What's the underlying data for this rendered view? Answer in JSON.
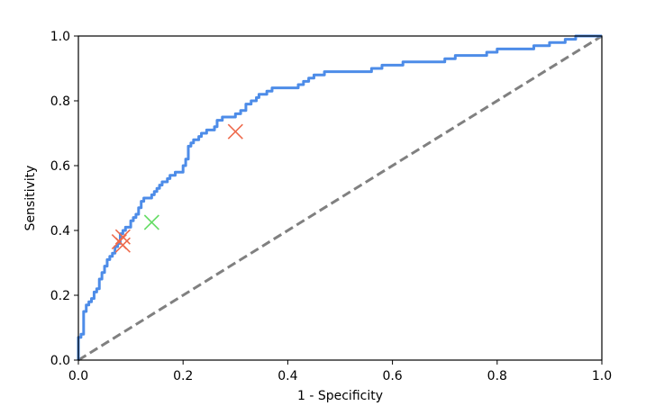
{
  "chart_data": {
    "type": "line",
    "title": "",
    "xlabel": "1 - Specificity",
    "ylabel": "Sensitivity",
    "xlim": [
      0.0,
      1.0
    ],
    "ylim": [
      0.0,
      1.0
    ],
    "xticks": [
      "0.0",
      "0.2",
      "0.4",
      "0.6",
      "0.8",
      "1.0"
    ],
    "yticks": [
      "0.0",
      "0.2",
      "0.4",
      "0.6",
      "0.8",
      "1.0"
    ],
    "grid": false,
    "legend": "none",
    "colors": {
      "roc": "#4d8ce8",
      "reference": "#808080",
      "marker_red": "#ee6b4d",
      "marker_green": "#66dd66"
    },
    "series": [
      {
        "style": "step-line",
        "color": "#4d8ce8",
        "x": [
          0.0,
          0.0,
          0.005,
          0.005,
          0.01,
          0.01,
          0.015,
          0.02,
          0.025,
          0.03,
          0.03,
          0.035,
          0.04,
          0.04,
          0.045,
          0.05,
          0.05,
          0.055,
          0.06,
          0.065,
          0.07,
          0.075,
          0.08,
          0.08,
          0.085,
          0.09,
          0.095,
          0.1,
          0.1,
          0.105,
          0.11,
          0.115,
          0.12,
          0.125,
          0.13,
          0.14,
          0.145,
          0.15,
          0.155,
          0.16,
          0.165,
          0.17,
          0.175,
          0.18,
          0.185,
          0.19,
          0.2,
          0.205,
          0.21,
          0.21,
          0.215,
          0.22,
          0.225,
          0.23,
          0.235,
          0.24,
          0.245,
          0.25,
          0.26,
          0.265,
          0.27,
          0.275,
          0.28,
          0.285,
          0.3,
          0.31,
          0.32,
          0.33,
          0.34,
          0.345,
          0.35,
          0.36,
          0.37,
          0.38,
          0.39,
          0.4,
          0.42,
          0.43,
          0.44,
          0.45,
          0.47,
          0.5,
          0.55,
          0.56,
          0.58,
          0.6,
          0.62,
          0.66,
          0.7,
          0.72,
          0.75,
          0.78,
          0.8,
          0.83,
          0.87,
          0.9,
          0.9,
          0.93,
          0.95,
          1.0
        ],
        "y": [
          0.0,
          0.07,
          0.07,
          0.08,
          0.08,
          0.15,
          0.17,
          0.18,
          0.19,
          0.2,
          0.21,
          0.22,
          0.23,
          0.25,
          0.27,
          0.28,
          0.29,
          0.31,
          0.32,
          0.33,
          0.35,
          0.36,
          0.37,
          0.39,
          0.4,
          0.41,
          0.41,
          0.42,
          0.43,
          0.44,
          0.45,
          0.47,
          0.49,
          0.5,
          0.5,
          0.51,
          0.52,
          0.53,
          0.54,
          0.55,
          0.55,
          0.56,
          0.57,
          0.57,
          0.58,
          0.58,
          0.6,
          0.62,
          0.64,
          0.66,
          0.67,
          0.68,
          0.68,
          0.69,
          0.7,
          0.7,
          0.71,
          0.71,
          0.72,
          0.74,
          0.74,
          0.75,
          0.75,
          0.75,
          0.76,
          0.77,
          0.79,
          0.8,
          0.81,
          0.82,
          0.82,
          0.83,
          0.84,
          0.84,
          0.84,
          0.84,
          0.85,
          0.86,
          0.87,
          0.88,
          0.89,
          0.89,
          0.89,
          0.9,
          0.91,
          0.91,
          0.92,
          0.92,
          0.93,
          0.94,
          0.94,
          0.95,
          0.96,
          0.96,
          0.97,
          0.97,
          0.98,
          0.99,
          1.0,
          1.0
        ]
      },
      {
        "style": "dashed-line",
        "color": "#808080",
        "x": [
          0.0,
          1.0
        ],
        "y": [
          0.0,
          1.0
        ]
      }
    ],
    "markers": [
      {
        "x": 0.3,
        "y": 0.705,
        "color": "#ee6b4d",
        "symbol": "x"
      },
      {
        "x": 0.085,
        "y": 0.38,
        "color": "#ee6b4d",
        "symbol": "x"
      },
      {
        "x": 0.078,
        "y": 0.365,
        "color": "#ee6b4d",
        "symbol": "x"
      },
      {
        "x": 0.085,
        "y": 0.355,
        "color": "#ee6b4d",
        "symbol": "x"
      },
      {
        "x": 0.14,
        "y": 0.425,
        "color": "#66dd66",
        "symbol": "x"
      }
    ]
  }
}
